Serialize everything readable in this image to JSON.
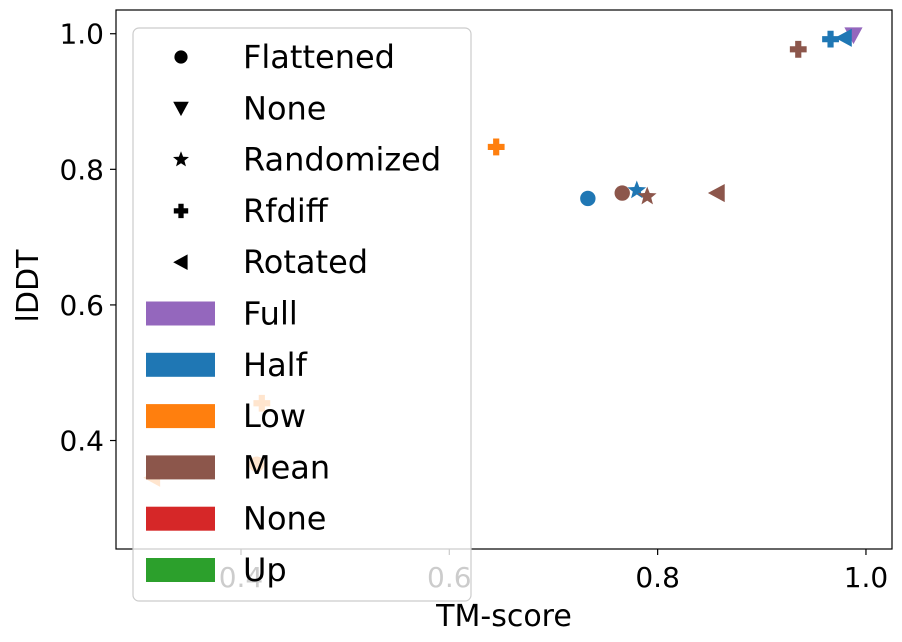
{
  "chart_data": {
    "type": "scatter",
    "title": "",
    "xlabel": "TM-score",
    "ylabel": "lDDT",
    "xlim": [
      0.28,
      1.025
    ],
    "ylim": [
      0.24,
      1.035
    ],
    "xticks": [
      "0.4",
      "0.6",
      "0.8",
      "1.0"
    ],
    "yticks": [
      "0.4",
      "0.6",
      "0.8",
      "1.0"
    ],
    "grid": false,
    "legend_position": "upper-left",
    "marker_legend": [
      {
        "label": "Flattened",
        "marker": "circle"
      },
      {
        "label": "None",
        "marker": "triangle-down"
      },
      {
        "label": "Randomized",
        "marker": "star"
      },
      {
        "label": "Rfdiff",
        "marker": "plus"
      },
      {
        "label": "Rotated",
        "marker": "triangle-left"
      }
    ],
    "color_legend": [
      {
        "label": "Full",
        "color": "#9467bd"
      },
      {
        "label": "Half",
        "color": "#1f77b4"
      },
      {
        "label": "Low",
        "color": "#ff7f0e"
      },
      {
        "label": "Mean",
        "color": "#8c564b"
      },
      {
        "label": "None",
        "color": "#d62728"
      },
      {
        "label": "Up",
        "color": "#2c a02c"
      }
    ],
    "points": [
      {
        "x": 0.988,
        "y": 0.998,
        "marker": "triangle-down",
        "color": "#9467bd"
      },
      {
        "x": 0.979,
        "y": 0.994,
        "marker": "triangle-left",
        "color": "#1f77b4"
      },
      {
        "x": 0.966,
        "y": 0.992,
        "marker": "plus",
        "color": "#1f77b4"
      },
      {
        "x": 0.935,
        "y": 0.977,
        "marker": "plus",
        "color": "#8c564b"
      },
      {
        "x": 0.645,
        "y": 0.833,
        "marker": "plus",
        "color": "#ff7f0e"
      },
      {
        "x": 0.733,
        "y": 0.757,
        "marker": "circle",
        "color": "#1f77b4"
      },
      {
        "x": 0.766,
        "y": 0.765,
        "marker": "circle",
        "color": "#8c564b"
      },
      {
        "x": 0.78,
        "y": 0.769,
        "marker": "star",
        "color": "#1f77b4"
      },
      {
        "x": 0.79,
        "y": 0.76,
        "marker": "star",
        "color": "#8c564b"
      },
      {
        "x": 0.857,
        "y": 0.765,
        "marker": "triangle-left",
        "color": "#8c564b"
      },
      {
        "x": 0.42,
        "y": 0.455,
        "marker": "plus",
        "color": "#ff7f0e"
      },
      {
        "x": 0.415,
        "y": 0.365,
        "marker": "circle",
        "color": "#ff7f0e"
      },
      {
        "x": 0.315,
        "y": 0.345,
        "marker": "triangle-left",
        "color": "#ff7f0e"
      }
    ]
  }
}
